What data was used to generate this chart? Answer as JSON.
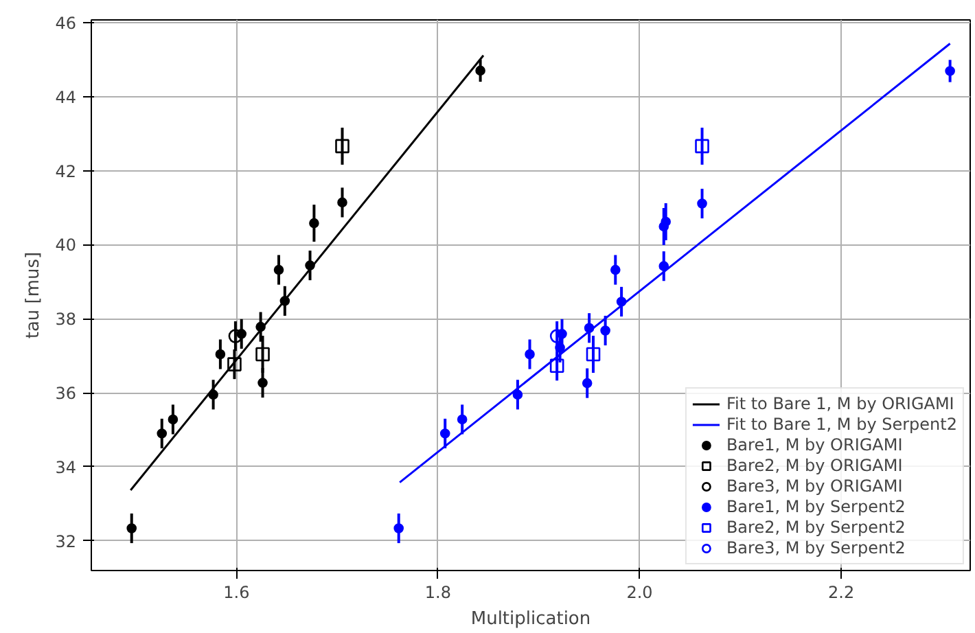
{
  "chart_data": {
    "type": "scatter",
    "xlabel": "Multiplication",
    "ylabel": "tau [mus]",
    "xlim": [
      1.456,
      2.328
    ],
    "ylim": [
      31.2,
      46.07
    ],
    "xticks": [
      1.6,
      1.8,
      {
        "value": 2.0,
        "label": "2.0"
      },
      2.2
    ],
    "yticks": [
      32,
      34,
      36,
      38,
      40,
      42,
      44,
      46
    ],
    "grid": true,
    "legend": "bottom right",
    "series": [
      {
        "name": "Fit to Bare 1, M by ORIGAMI",
        "type": "line",
        "color": "#000000",
        "line_style": "solid",
        "x": [
          1.495,
          1.845
        ],
        "values": [
          33.37,
          45.11
        ]
      },
      {
        "name": "Fit to Bare 1, M by Serpent2",
        "type": "line",
        "color": "#0000ff",
        "line_style": "solid",
        "x": [
          1.762,
          2.308
        ],
        "values": [
          33.58,
          45.43
        ]
      },
      {
        "name": "Bare1, M by ORIGAMI",
        "color": "#000000",
        "marker": "dot",
        "x": [
          1.496,
          1.526,
          1.537,
          1.577,
          1.584,
          1.605,
          1.624,
          1.626,
          1.642,
          1.648,
          1.673,
          1.677,
          1.705,
          1.842
        ],
        "values": [
          32.34,
          34.9,
          35.28,
          35.95,
          37.04,
          37.59,
          37.78,
          36.27,
          39.32,
          38.48,
          39.44,
          40.58,
          41.14,
          44.7
        ],
        "errors": [
          0.4,
          0.4,
          0.4,
          0.4,
          0.4,
          0.4,
          0.4,
          0.4,
          0.4,
          0.4,
          0.4,
          0.5,
          0.4,
          0.3
        ]
      },
      {
        "name": "Bare2, M by ORIGAMI",
        "color": "#000000",
        "marker": "square",
        "x": [
          1.598,
          1.626,
          1.705
        ],
        "values": [
          36.77,
          37.04,
          42.66
        ],
        "errors": [
          0.4,
          0.5,
          0.5
        ]
      },
      {
        "name": "Bare3, M by ORIGAMI",
        "color": "#000000",
        "marker": "circle",
        "x": [
          1.599
        ],
        "values": [
          37.53
        ],
        "errors": [
          0.4
        ]
      },
      {
        "name": "Bare1, M by Serpent2",
        "color": "#0000ff",
        "marker": "dot",
        "x": [
          1.761,
          1.807,
          1.824,
          1.879,
          1.891,
          1.921,
          1.923,
          1.948,
          1.95,
          1.966,
          1.976,
          1.982,
          2.024,
          2.024,
          2.026,
          2.062,
          2.308
        ],
        "values": [
          32.34,
          34.9,
          35.28,
          35.95,
          37.04,
          37.22,
          37.59,
          36.26,
          37.75,
          37.68,
          39.32,
          38.46,
          39.42,
          40.49,
          40.62,
          41.11,
          44.69
        ],
        "errors": [
          0.4,
          0.4,
          0.4,
          0.4,
          0.4,
          0.4,
          0.4,
          0.4,
          0.4,
          0.4,
          0.4,
          0.4,
          0.4,
          0.5,
          0.5,
          0.4,
          0.3
        ]
      },
      {
        "name": "Bare2, M by Serpent2",
        "color": "#0000ff",
        "marker": "square",
        "x": [
          1.918,
          1.954,
          2.062
        ],
        "values": [
          36.73,
          37.04,
          42.66
        ],
        "errors": [
          0.4,
          0.5,
          0.5
        ]
      },
      {
        "name": "Bare3, M by Serpent2",
        "color": "#0000ff",
        "marker": "circle",
        "x": [
          1.918
        ],
        "values": [
          37.53
        ],
        "errors": [
          0.4
        ]
      }
    ]
  }
}
